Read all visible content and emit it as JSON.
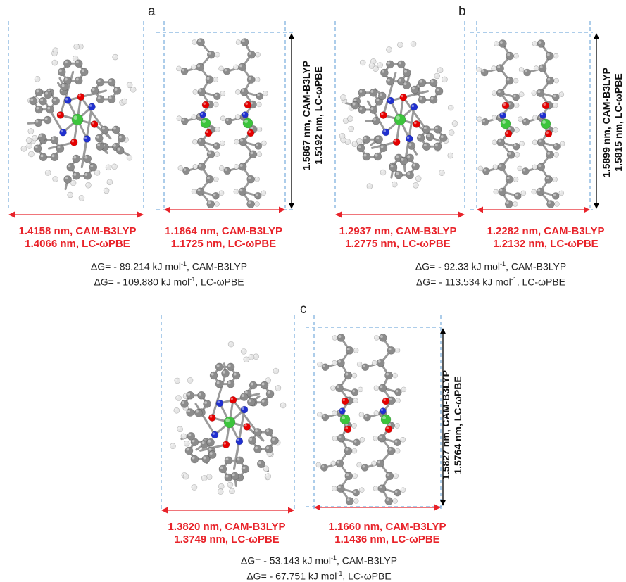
{
  "panels": [
    {
      "label": "a",
      "front_width": [
        "1.4158 nm, CAM-B3LYP",
        "1.4066 nm, LC-ωPBE"
      ],
      "side_width": [
        "1.1864 nm, CAM-B3LYP",
        "1.1725 nm, LC-ωPBE"
      ],
      "height": [
        "1.5867 nm, CAM-B3LYP",
        "1.5192 nm, LC-ωPBE"
      ],
      "energy": [
        {
          "prefix": "ΔG= - 89.214 kJ mol",
          "sup": "-1",
          "suffix": ", CAM-B3LYP"
        },
        {
          "prefix": "ΔG= - 109.880 kJ mol",
          "sup": "-1",
          "suffix": ", LC-ωPBE"
        }
      ]
    },
    {
      "label": "b",
      "front_width": [
        "1.2937 nm, CAM-B3LYP",
        "1.2775 nm, LC-ωPBE"
      ],
      "side_width": [
        "1.2282 nm, CAM-B3LYP",
        "1.2132 nm, LC-ωPBE"
      ],
      "height": [
        "1.5899 nm, CAM-B3LYP",
        "1.5815 nm, LC-ωPBE"
      ],
      "energy": [
        {
          "prefix": "ΔG= - 92.33 kJ mol",
          "sup": "-1",
          "suffix": ", CAM-B3LYP"
        },
        {
          "prefix": "ΔG= - 113.534 kJ mol",
          "sup": "-1",
          "suffix": ", LC-ωPBE"
        }
      ]
    },
    {
      "label": "c",
      "front_width": [
        "1.3820 nm, CAM-B3LYP",
        "1.3749 nm, LC-ωPBE"
      ],
      "side_width": [
        "1.1660 nm, CAM-B3LYP",
        "1.1436 nm, LC-ωPBE"
      ],
      "height": [
        "1.5827 nm, CAM-B3LYP",
        "1.5764 nm, LC-ωPBE"
      ],
      "energy": [
        {
          "prefix": "ΔG= - 53.143 kJ mol",
          "sup": "-1",
          "suffix": ", CAM-B3LYP"
        },
        {
          "prefix": "ΔG= - 67.751 kJ mol",
          "sup": "-1",
          "suffix": ", LC-ωPBE"
        }
      ]
    }
  ],
  "colors": {
    "width_arrow": "#e8232a",
    "height_arrow": "#000000",
    "box_dash": "#5b9bd5",
    "carbon": "#8c8c8c",
    "hydrogen": "#e6e6e6",
    "oxygen": "#e60000",
    "nitrogen": "#2030d0",
    "metal": "#3cc43c"
  }
}
